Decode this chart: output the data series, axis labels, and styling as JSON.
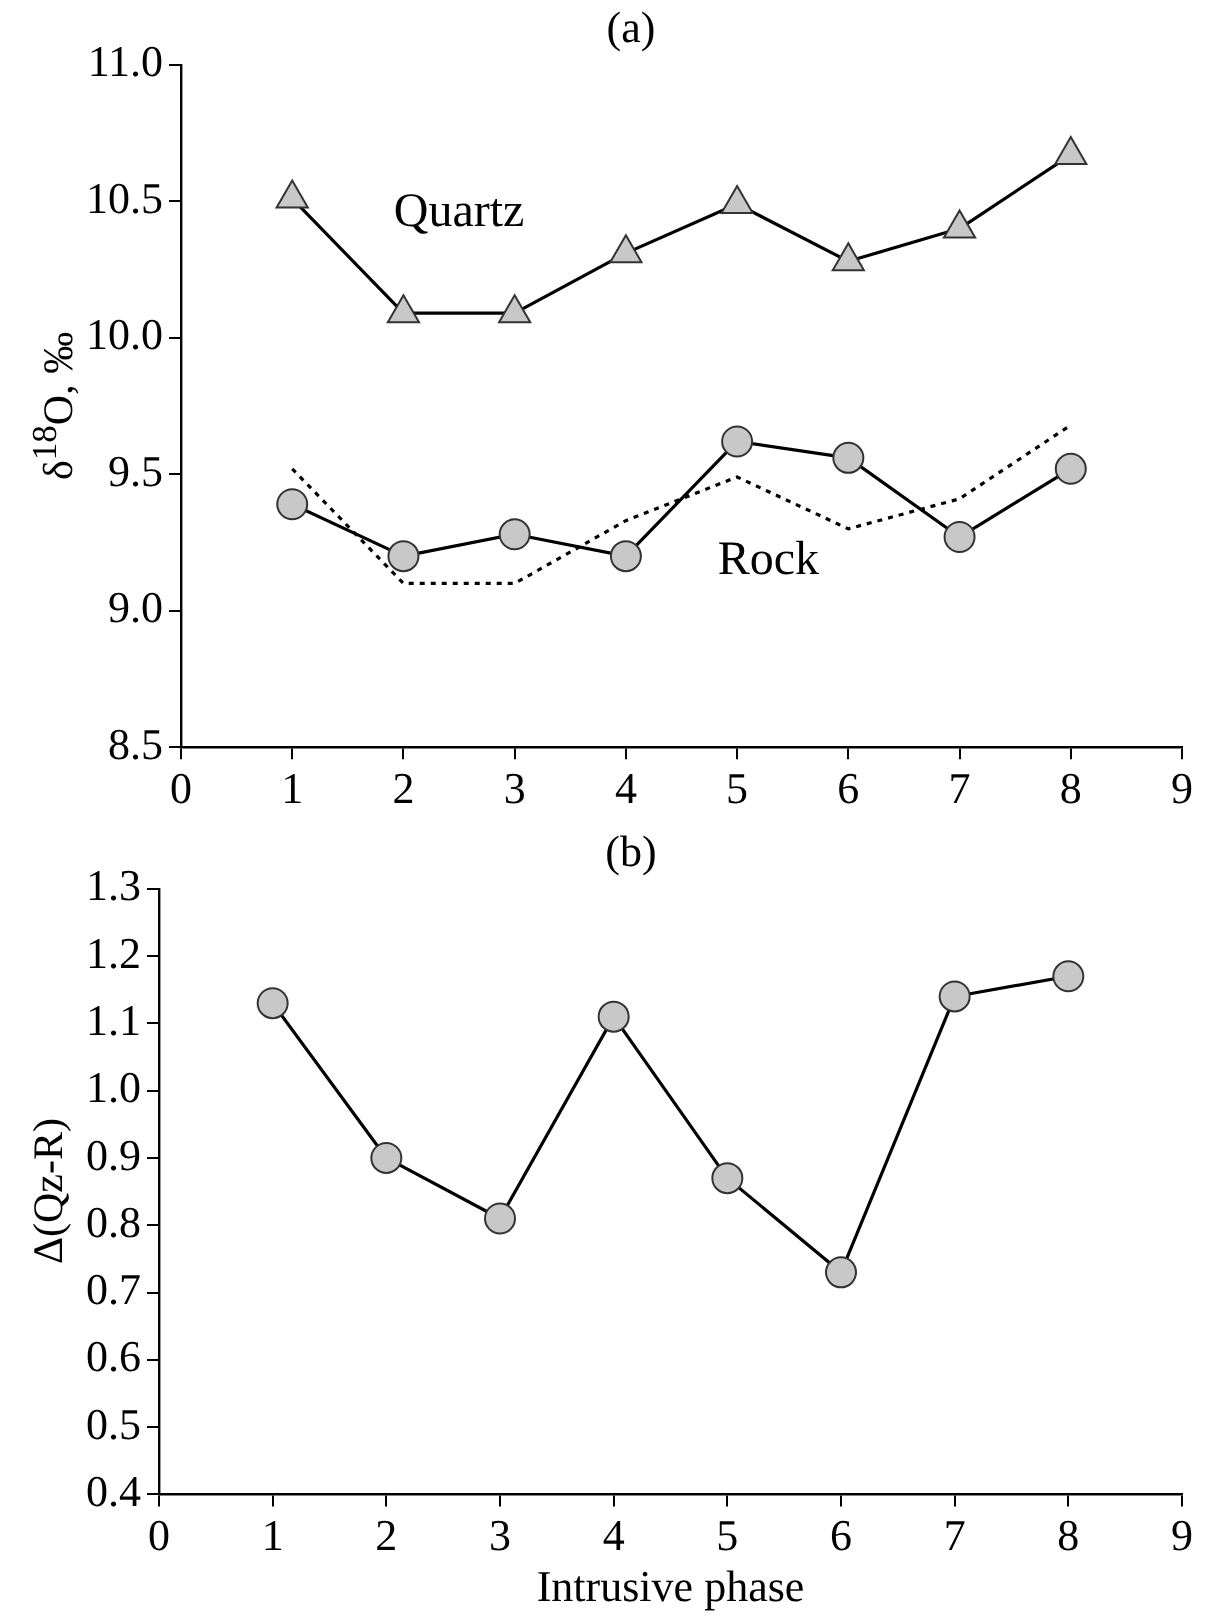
{
  "chart_data": [
    {
      "type": "line",
      "title": "(a)",
      "ylabel": "δ$^{18}$O, ‰",
      "x": [
        1,
        2,
        3,
        4,
        5,
        6,
        7,
        8
      ],
      "series": [
        {
          "name": "Quartz",
          "color": "#000000",
          "marker": "triangle",
          "line_style": "solid",
          "values": [
            10.51,
            10.09,
            10.09,
            10.31,
            10.49,
            10.28,
            10.4,
            10.67
          ]
        },
        {
          "name": "Rock",
          "color": "#000000",
          "marker": "circle",
          "line_style": "solid",
          "values": [
            9.39,
            9.2,
            9.28,
            9.2,
            9.62,
            9.56,
            9.27,
            9.52
          ]
        },
        {
          "color": "#000000",
          "marker": "none",
          "line_style": "dotted",
          "values": [
            9.52,
            9.1,
            9.1,
            9.33,
            9.49,
            9.3,
            9.41,
            9.68
          ]
        }
      ],
      "xlim": [
        0,
        9
      ],
      "xticks": [
        0,
        1,
        2,
        3,
        4,
        5,
        6,
        7,
        8,
        9
      ],
      "ylim": [
        8.5,
        11.0
      ],
      "yticks": [
        {
          "value": 8.5,
          "label": "8.5"
        },
        {
          "value": 9.0,
          "label": "9.0"
        },
        {
          "value": 9.5,
          "label": "9.5"
        },
        {
          "value": 10.0,
          "label": "10.0"
        },
        {
          "value": 10.5,
          "label": "10.5"
        },
        {
          "value": 11.0,
          "label": "11.0"
        }
      ],
      "grid": false,
      "legend": false
    },
    {
      "type": "line",
      "title": "(b)",
      "xlabel": "Intrusive phase",
      "ylabel": "Δ(Qz-R)",
      "x": [
        1,
        2,
        3,
        4,
        5,
        6,
        7,
        8
      ],
      "series": [
        {
          "color": "#000000",
          "marker": "circle",
          "line_style": "solid",
          "values": [
            1.13,
            0.9,
            0.81,
            1.11,
            0.87,
            0.73,
            1.14,
            1.17
          ]
        }
      ],
      "xlim": [
        0,
        9
      ],
      "xticks": [
        0,
        1,
        2,
        3,
        4,
        5,
        6,
        7,
        8,
        9
      ],
      "ylim": [
        0.4,
        1.3
      ],
      "yticks": [
        {
          "value": 0.4,
          "label": "0.4"
        },
        {
          "value": 0.5,
          "label": "0.5"
        },
        {
          "value": 0.6,
          "label": "0.6"
        },
        {
          "value": 0.7,
          "label": "0.7"
        },
        {
          "value": 0.8,
          "label": "0.8"
        },
        {
          "value": 0.9,
          "label": "0.9"
        },
        {
          "value": 1.0,
          "label": "1.0"
        },
        {
          "value": 1.1,
          "label": "1.1"
        },
        {
          "value": 1.2,
          "label": "1.2"
        },
        {
          "value": 1.3,
          "label": "1.3"
        }
      ],
      "grid": false,
      "legend": false
    }
  ]
}
